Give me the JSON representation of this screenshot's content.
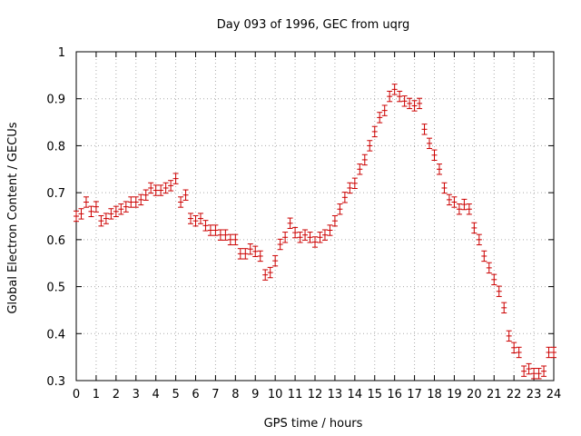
{
  "chart_data": {
    "type": "scatter",
    "title": "Day 093 of 1996, GEC from uqrg",
    "xlabel": "GPS time / hours",
    "ylabel": "Global Electron Content / GECUs",
    "xlim": [
      0,
      24
    ],
    "ylim": [
      0.3,
      1.0
    ],
    "grid": true,
    "marker_color": "#cc0000",
    "error_bar": 0.011,
    "xticks": [
      "0",
      "1",
      "2",
      "3",
      "4",
      "5",
      "6",
      "7",
      "8",
      "9",
      "10",
      "11",
      "12",
      "13",
      "14",
      "15",
      "16",
      "17",
      "18",
      "19",
      "20",
      "21",
      "22",
      "23",
      "24"
    ],
    "yticks": [
      "0.3",
      "0.4",
      "0.5",
      "0.6",
      "0.7",
      "0.8",
      "0.9",
      "1"
    ],
    "x": [
      0.0,
      0.25,
      0.5,
      0.75,
      1.0,
      1.25,
      1.5,
      1.75,
      2.0,
      2.25,
      2.5,
      2.75,
      3.0,
      3.25,
      3.5,
      3.75,
      4.0,
      4.25,
      4.5,
      4.75,
      5.0,
      5.25,
      5.5,
      5.75,
      6.0,
      6.25,
      6.5,
      6.75,
      7.0,
      7.25,
      7.5,
      7.75,
      8.0,
      8.25,
      8.5,
      8.75,
      9.0,
      9.25,
      9.5,
      9.75,
      10.0,
      10.25,
      10.5,
      10.75,
      11.0,
      11.25,
      11.5,
      11.75,
      12.0,
      12.25,
      12.5,
      12.75,
      13.0,
      13.25,
      13.5,
      13.75,
      14.0,
      14.25,
      14.5,
      14.75,
      15.0,
      15.25,
      15.5,
      15.75,
      16.0,
      16.25,
      16.5,
      16.75,
      17.0,
      17.25,
      17.5,
      17.75,
      18.0,
      18.25,
      18.5,
      18.75,
      19.0,
      19.25,
      19.5,
      19.75,
      20.0,
      20.25,
      20.5,
      20.75,
      21.0,
      21.25,
      21.5,
      21.75,
      22.0,
      22.25,
      22.5,
      22.75,
      23.0,
      23.25,
      23.5,
      23.75,
      24.0
    ],
    "y": [
      0.65,
      0.655,
      0.68,
      0.66,
      0.67,
      0.64,
      0.645,
      0.655,
      0.66,
      0.665,
      0.67,
      0.68,
      0.68,
      0.685,
      0.695,
      0.71,
      0.705,
      0.705,
      0.71,
      0.715,
      0.73,
      0.68,
      0.695,
      0.645,
      0.64,
      0.645,
      0.63,
      0.62,
      0.62,
      0.61,
      0.61,
      0.6,
      0.6,
      0.57,
      0.57,
      0.58,
      0.575,
      0.565,
      0.525,
      0.53,
      0.555,
      0.59,
      0.605,
      0.635,
      0.615,
      0.605,
      0.61,
      0.605,
      0.595,
      0.605,
      0.61,
      0.62,
      0.64,
      0.665,
      0.69,
      0.71,
      0.72,
      0.75,
      0.77,
      0.8,
      0.83,
      0.86,
      0.875,
      0.905,
      0.92,
      0.905,
      0.895,
      0.89,
      0.885,
      0.89,
      0.835,
      0.805,
      0.78,
      0.75,
      0.71,
      0.685,
      0.68,
      0.665,
      0.675,
      0.665,
      0.625,
      0.6,
      0.565,
      0.54,
      0.515,
      0.49,
      0.455,
      0.395,
      0.37,
      0.36,
      0.32,
      0.325,
      0.315,
      0.315,
      0.32,
      0.36,
      0.36
    ]
  }
}
